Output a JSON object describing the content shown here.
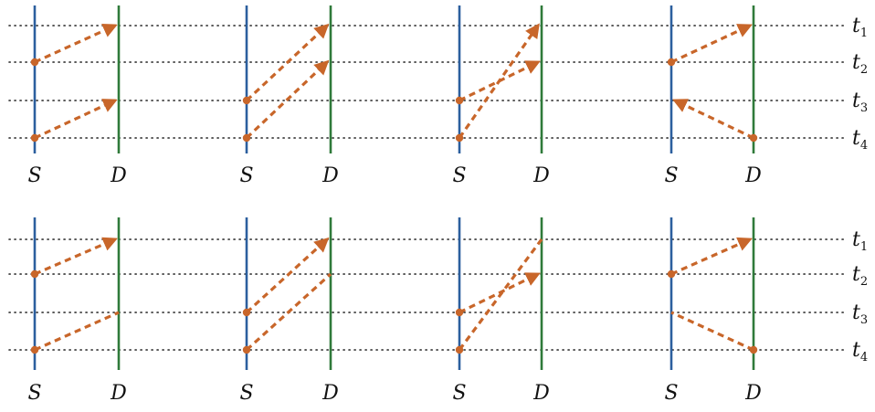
{
  "colors": {
    "source_line": "#2c5f9e",
    "destination_line": "#2f7a3a",
    "message": "#c8662a",
    "grid": "#222222"
  },
  "labels": {
    "source": "S",
    "destination": "D",
    "time_symbol": "t",
    "time_indices": [
      "1",
      "2",
      "3",
      "4"
    ]
  },
  "rows": [
    {
      "panels": [
        {
          "messages": [
            {
              "from": "S",
              "send": 2,
              "recv": 1,
              "arrow": true
            },
            {
              "from": "S",
              "send": 4,
              "recv": 3,
              "arrow": true
            }
          ]
        },
        {
          "messages": [
            {
              "from": "S",
              "send": 3,
              "recv": 1,
              "arrow": true
            },
            {
              "from": "S",
              "send": 4,
              "recv": 2,
              "arrow": true
            }
          ]
        },
        {
          "messages": [
            {
              "from": "S",
              "send": 3,
              "recv": 2,
              "arrow": true
            },
            {
              "from": "S",
              "send": 4,
              "recv": 1,
              "arrow": true
            }
          ]
        },
        {
          "messages": [
            {
              "from": "S",
              "send": 2,
              "recv": 1,
              "arrow": true
            },
            {
              "from": "D",
              "send": 4,
              "recv": 3,
              "arrow": true
            }
          ]
        }
      ]
    },
    {
      "panels": [
        {
          "messages": [
            {
              "from": "S",
              "send": 2,
              "recv": 1,
              "arrow": true
            },
            {
              "from": "S",
              "send": 4,
              "recv": 3,
              "arrow": false
            }
          ]
        },
        {
          "messages": [
            {
              "from": "S",
              "send": 3,
              "recv": 1,
              "arrow": true
            },
            {
              "from": "S",
              "send": 4,
              "recv": 2,
              "arrow": false
            }
          ]
        },
        {
          "messages": [
            {
              "from": "S",
              "send": 3,
              "recv": 2,
              "arrow": true
            },
            {
              "from": "S",
              "send": 4,
              "recv": 1,
              "arrow": false
            }
          ]
        },
        {
          "messages": [
            {
              "from": "S",
              "send": 2,
              "recv": 1,
              "arrow": true
            },
            {
              "from": "D",
              "send": 4,
              "recv": 3,
              "arrow": false
            }
          ]
        }
      ]
    }
  ]
}
